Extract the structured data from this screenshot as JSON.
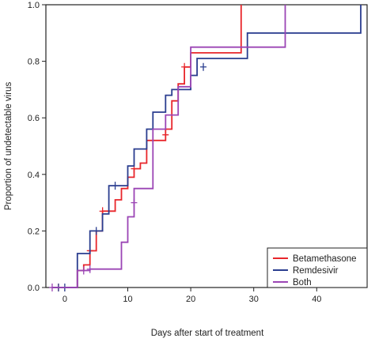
{
  "chart_data": {
    "type": "line",
    "step": true,
    "xlabel": "Days after start of treatment",
    "ylabel": "Proportion of undetectable virus",
    "xlim": [
      -3,
      48
    ],
    "ylim": [
      0,
      1
    ],
    "x_ticks": [
      "0",
      "10",
      "20",
      "30",
      "40"
    ],
    "x_tick_values": [
      0,
      10,
      20,
      30,
      40
    ],
    "y_ticks": [
      "0.0",
      "0.2",
      "0.4",
      "0.6",
      "0.8",
      "1.0"
    ],
    "y_tick_values": [
      0,
      0.2,
      0.4,
      0.6,
      0.8,
      1.0
    ],
    "grid": false,
    "legend_position": "bottom-right",
    "series": [
      {
        "name": "Betamethasone",
        "color": "#e8262b",
        "points": [
          [
            -2,
            0
          ],
          [
            2,
            0
          ],
          [
            2,
            0.06
          ],
          [
            3,
            0.06
          ],
          [
            3,
            0.08
          ],
          [
            4,
            0.08
          ],
          [
            4,
            0.13
          ],
          [
            5,
            0.13
          ],
          [
            5,
            0.2
          ],
          [
            6,
            0.2
          ],
          [
            6,
            0.27
          ],
          [
            8,
            0.27
          ],
          [
            8,
            0.31
          ],
          [
            9,
            0.31
          ],
          [
            9,
            0.35
          ],
          [
            10,
            0.35
          ],
          [
            10,
            0.39
          ],
          [
            11,
            0.39
          ],
          [
            11,
            0.42
          ],
          [
            12,
            0.42
          ],
          [
            12,
            0.44
          ],
          [
            13,
            0.44
          ],
          [
            13,
            0.52
          ],
          [
            16,
            0.52
          ],
          [
            16,
            0.56
          ],
          [
            17,
            0.56
          ],
          [
            17,
            0.66
          ],
          [
            18,
            0.66
          ],
          [
            18,
            0.72
          ],
          [
            19,
            0.72
          ],
          [
            19,
            0.78
          ],
          [
            20,
            0.78
          ],
          [
            20,
            0.83
          ],
          [
            28,
            0.83
          ],
          [
            28,
            1.0
          ]
        ],
        "censored": [
          [
            -1,
            0
          ],
          [
            4,
            0.13
          ],
          [
            6,
            0.27
          ],
          [
            11,
            0.42
          ],
          [
            16,
            0.54
          ],
          [
            19,
            0.78
          ]
        ]
      },
      {
        "name": "Remdesivir",
        "color": "#2a3d8f",
        "points": [
          [
            -2,
            0
          ],
          [
            2,
            0
          ],
          [
            2,
            0.12
          ],
          [
            4,
            0.12
          ],
          [
            4,
            0.2
          ],
          [
            6,
            0.2
          ],
          [
            6,
            0.26
          ],
          [
            7,
            0.26
          ],
          [
            7,
            0.36
          ],
          [
            10,
            0.36
          ],
          [
            10,
            0.43
          ],
          [
            11,
            0.43
          ],
          [
            11,
            0.49
          ],
          [
            13,
            0.49
          ],
          [
            13,
            0.56
          ],
          [
            14,
            0.56
          ],
          [
            14,
            0.62
          ],
          [
            16,
            0.62
          ],
          [
            16,
            0.68
          ],
          [
            17,
            0.68
          ],
          [
            17,
            0.7
          ],
          [
            20,
            0.7
          ],
          [
            20,
            0.75
          ],
          [
            21,
            0.75
          ],
          [
            21,
            0.81
          ],
          [
            29,
            0.81
          ],
          [
            29,
            0.9
          ],
          [
            47,
            0.9
          ],
          [
            47,
            1.0
          ]
        ],
        "censored": [
          [
            -1,
            0
          ],
          [
            0,
            0
          ],
          [
            5,
            0.2
          ],
          [
            8,
            0.36
          ],
          [
            22,
            0.78
          ]
        ]
      },
      {
        "name": "Both",
        "color": "#9b45b5",
        "points": [
          [
            -2,
            0
          ],
          [
            2,
            0
          ],
          [
            2,
            0.06
          ],
          [
            4,
            0.06
          ],
          [
            4,
            0.065
          ],
          [
            9,
            0.065
          ],
          [
            9,
            0.16
          ],
          [
            10,
            0.16
          ],
          [
            10,
            0.25
          ],
          [
            11,
            0.25
          ],
          [
            11,
            0.35
          ],
          [
            14,
            0.35
          ],
          [
            14,
            0.56
          ],
          [
            16,
            0.56
          ],
          [
            16,
            0.61
          ],
          [
            18,
            0.61
          ],
          [
            18,
            0.71
          ],
          [
            20,
            0.71
          ],
          [
            20,
            0.85
          ],
          [
            35,
            0.85
          ],
          [
            35,
            1.0
          ]
        ],
        "censored": [
          [
            -2,
            0
          ],
          [
            3,
            0.06
          ],
          [
            4,
            0.065
          ],
          [
            11,
            0.3
          ]
        ]
      }
    ]
  }
}
